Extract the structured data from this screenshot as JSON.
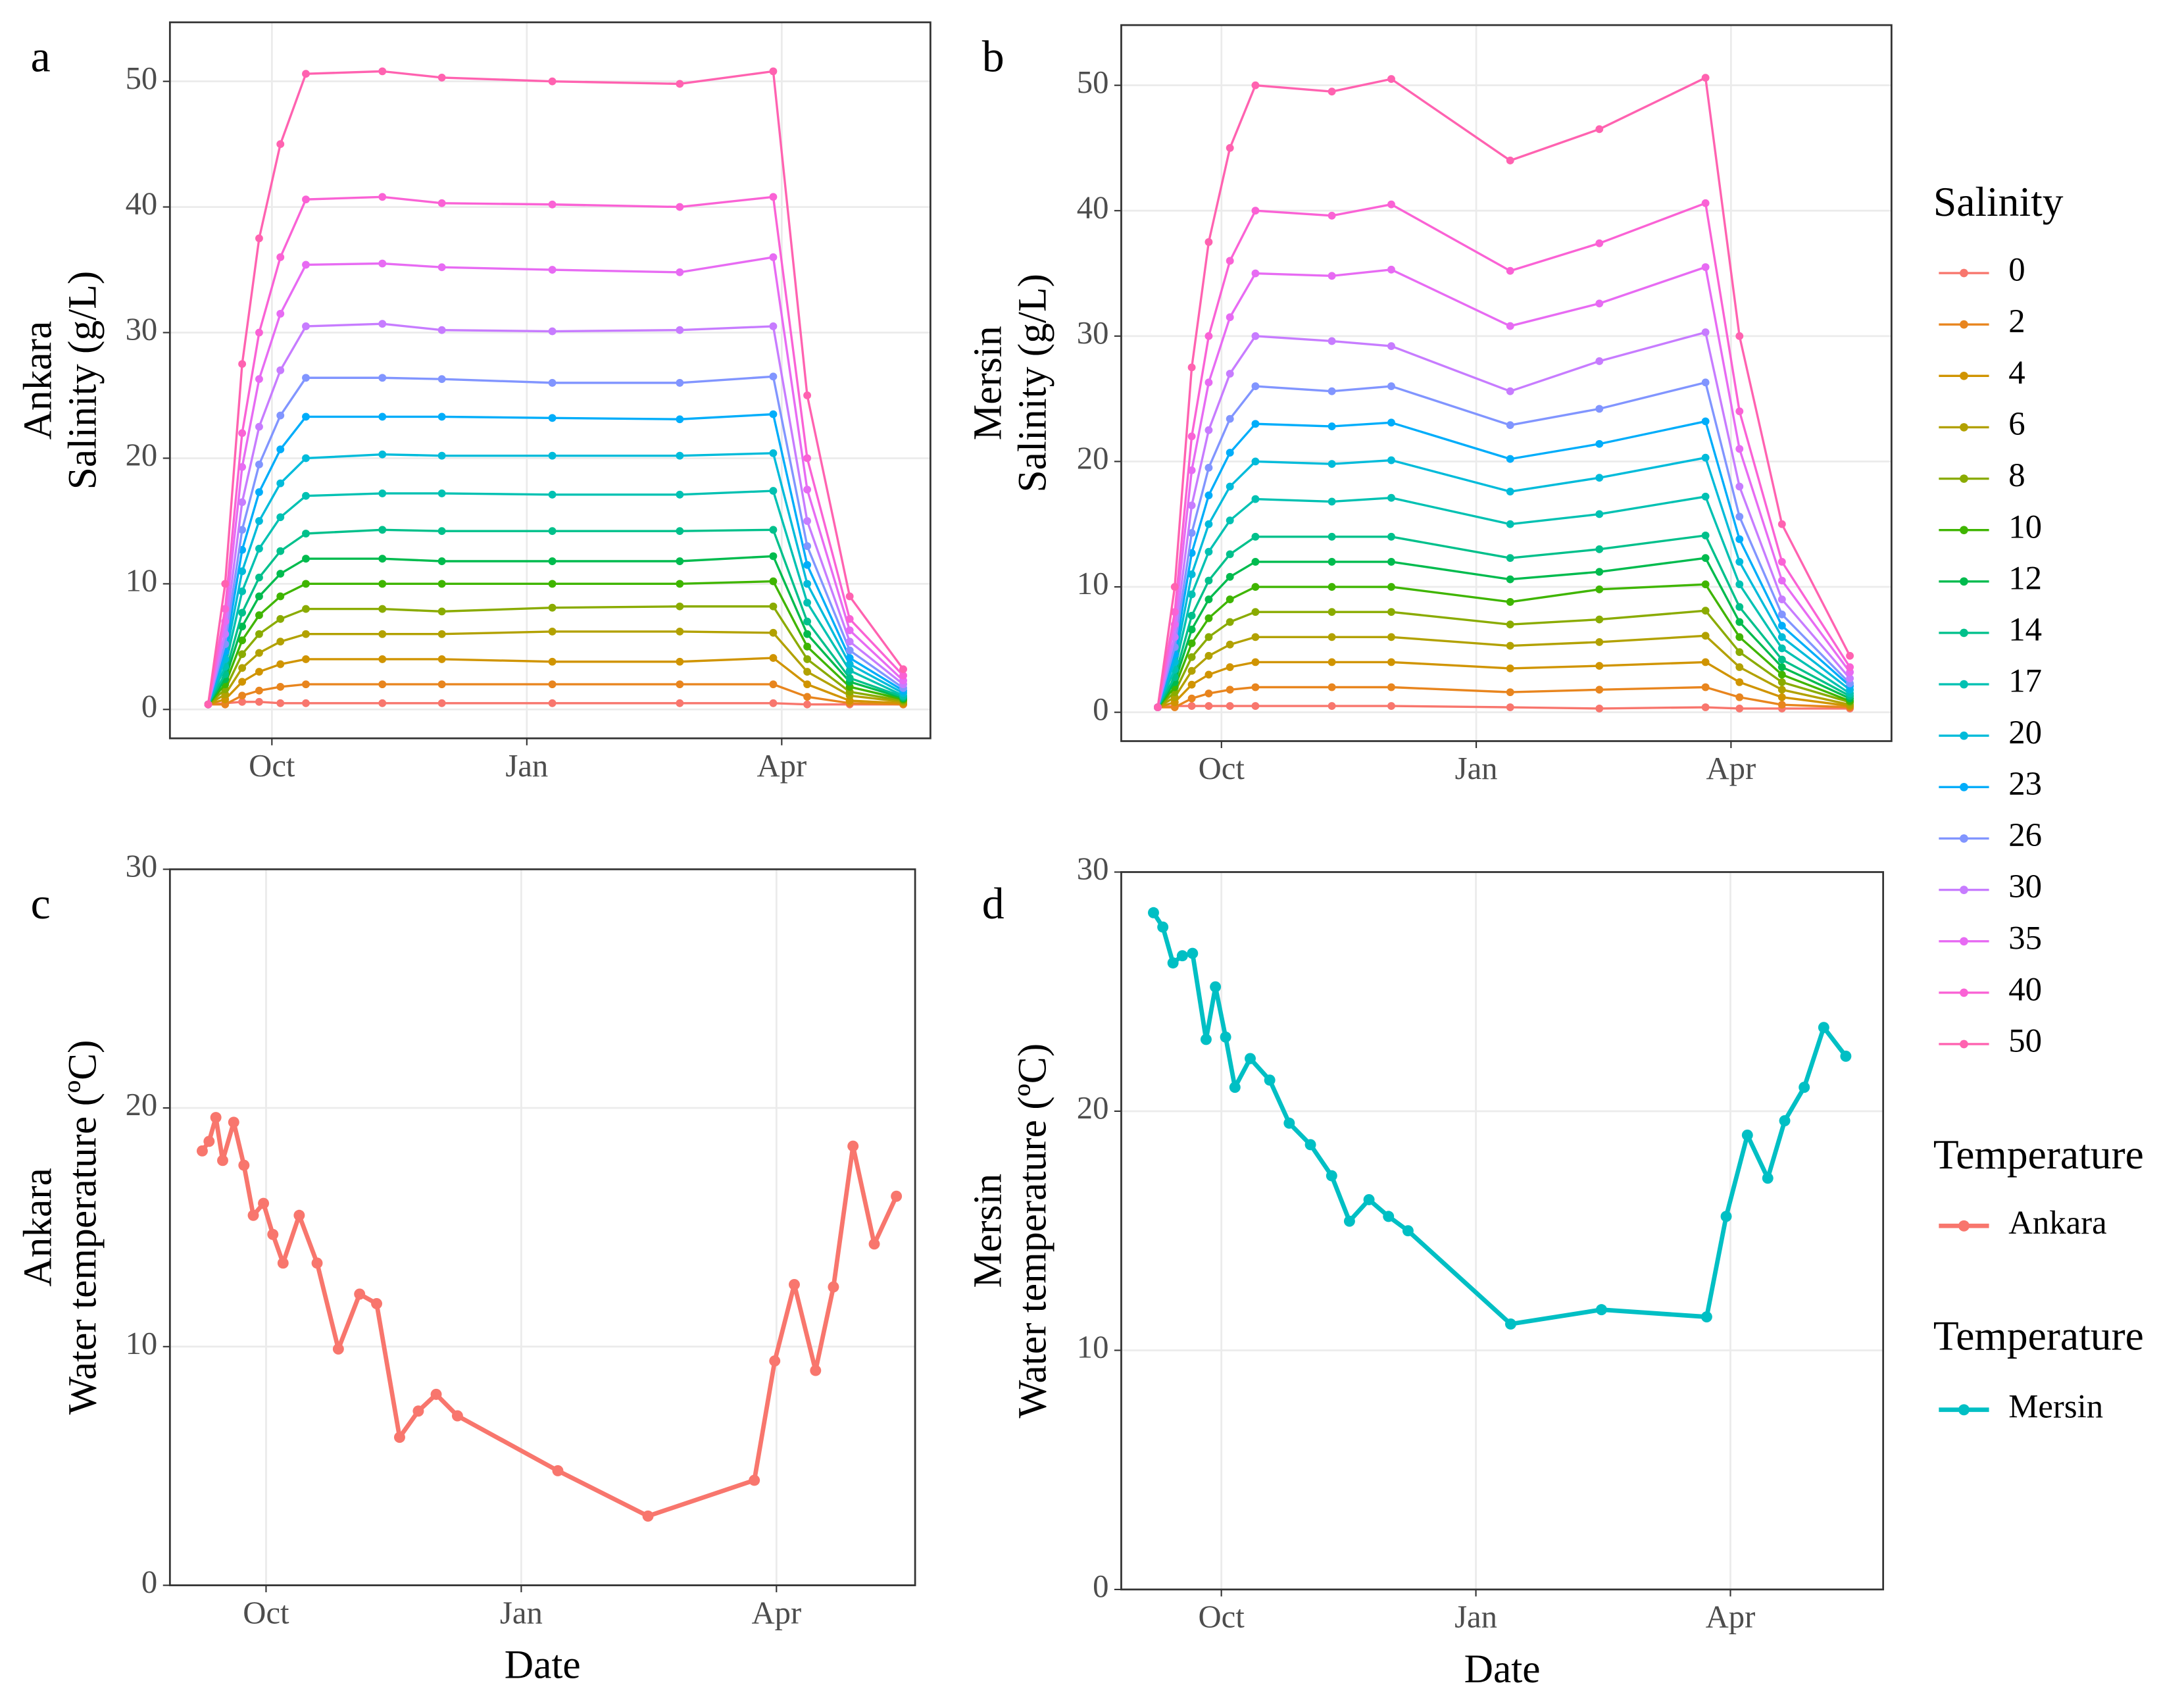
{
  "chart_data": [
    {
      "type": "line",
      "panel_label": "a",
      "ylabel": [
        "Ankara",
        "Salinity (g/L)"
      ],
      "legend_title": "Salinity",
      "xlim": [
        8.8,
        17.75
      ],
      "ylim": [
        -2.3,
        54.7
      ],
      "xticks": [
        {
          "value": 10,
          "label": "Oct"
        },
        {
          "value": 13,
          "label": "Jan"
        },
        {
          "value": 16,
          "label": "Apr"
        }
      ],
      "yticks": [
        0,
        10,
        20,
        30,
        40,
        50
      ],
      "grid": true,
      "x": [
        9.25,
        9.45,
        9.65,
        9.85,
        10.1,
        10.4,
        11.3,
        12.0,
        13.3,
        14.8,
        15.9,
        16.3,
        16.8,
        17.43
      ],
      "series": [
        {
          "name": "0",
          "color": "#F8766D",
          "values": [
            0.4,
            0.5,
            0.6,
            0.6,
            0.5,
            0.5,
            0.5,
            0.5,
            0.5,
            0.5,
            0.5,
            0.4,
            0.4,
            0.4
          ]
        },
        {
          "name": "2",
          "color": "#E8851E",
          "values": [
            0.4,
            0.4,
            1.1,
            1.5,
            1.8,
            2,
            2,
            2,
            2,
            2,
            2,
            1,
            0.5,
            0.4
          ]
        },
        {
          "name": "4",
          "color": "#D09400",
          "values": [
            0.4,
            0.8,
            2.2,
            3,
            3.6,
            4,
            4,
            4,
            3.8,
            3.8,
            4.1,
            2,
            0.7,
            0.5
          ]
        },
        {
          "name": "6",
          "color": "#B2A100",
          "values": [
            0.4,
            1.2,
            3.3,
            4.5,
            5.4,
            6,
            6,
            6,
            6.2,
            6.2,
            6.1,
            3,
            1.1,
            0.6
          ]
        },
        {
          "name": "8",
          "color": "#8AAB00",
          "values": [
            0.4,
            1.6,
            4.4,
            6,
            7.2,
            8,
            8,
            7.8,
            8.1,
            8.2,
            8.2,
            4,
            1.4,
            0.7
          ]
        },
        {
          "name": "10",
          "color": "#3FB500",
          "values": [
            0.4,
            2,
            5.5,
            7.5,
            9,
            10,
            10,
            10,
            10,
            10,
            10.2,
            5,
            1.8,
            0.8
          ]
        },
        {
          "name": "12",
          "color": "#00BB4E",
          "values": [
            0.4,
            2.4,
            6.6,
            9,
            10.8,
            12,
            12,
            11.8,
            11.8,
            11.8,
            12.2,
            6,
            2.2,
            0.9
          ]
        },
        {
          "name": "14",
          "color": "#00C08B",
          "values": [
            0.4,
            2.8,
            7.7,
            10.5,
            12.6,
            14,
            14.3,
            14.2,
            14.2,
            14.2,
            14.3,
            7,
            2.5,
            1
          ]
        },
        {
          "name": "17",
          "color": "#00C1B2",
          "values": [
            0.4,
            3.4,
            9.4,
            12.8,
            15.3,
            17,
            17.2,
            17.2,
            17.1,
            17.1,
            17.4,
            8.5,
            3.1,
            1.1
          ]
        },
        {
          "name": "20",
          "color": "#00BBDA",
          "values": [
            0.4,
            4,
            11,
            15,
            18,
            20,
            20.3,
            20.2,
            20.2,
            20.2,
            20.4,
            10,
            3.6,
            1.3
          ]
        },
        {
          "name": "23",
          "color": "#00ADFA",
          "values": [
            0.4,
            4.6,
            12.7,
            17.3,
            20.7,
            23.3,
            23.3,
            23.3,
            23.2,
            23.1,
            23.5,
            11.5,
            4.1,
            1.5
          ]
        },
        {
          "name": "26",
          "color": "#8195FF",
          "values": [
            0.4,
            5.2,
            14.3,
            19.5,
            23.4,
            26.4,
            26.4,
            26.3,
            26,
            26,
            26.5,
            13,
            4.7,
            1.7
          ]
        },
        {
          "name": "30",
          "color": "#C77CFF",
          "values": [
            0.4,
            6,
            16.5,
            22.5,
            27,
            30.5,
            30.7,
            30.2,
            30.1,
            30.2,
            30.5,
            15,
            5.4,
            2
          ]
        },
        {
          "name": "35",
          "color": "#E76BF3",
          "values": [
            0.4,
            7,
            19.3,
            26.3,
            31.5,
            35.4,
            35.5,
            35.2,
            35,
            34.8,
            36,
            17.5,
            6.3,
            2.3
          ]
        },
        {
          "name": "40",
          "color": "#FA62D5",
          "values": [
            0.4,
            8,
            22,
            30,
            36,
            40.6,
            40.8,
            40.3,
            40.2,
            40,
            40.8,
            20,
            7.2,
            2.7
          ]
        },
        {
          "name": "50",
          "color": "#FF62B0",
          "values": [
            0.4,
            10,
            27.5,
            37.5,
            45,
            50.6,
            50.8,
            50.3,
            50,
            49.8,
            50.8,
            25,
            9,
            3.2
          ]
        }
      ]
    },
    {
      "type": "line",
      "panel_label": "b",
      "ylabel": [
        "Mersin",
        "Salinity (g/L)"
      ],
      "xlim": [
        8.82,
        17.89
      ],
      "ylim": [
        -2.3,
        54.8
      ],
      "xticks": [
        {
          "value": 10,
          "label": "Oct"
        },
        {
          "value": 13,
          "label": "Jan"
        },
        {
          "value": 16,
          "label": "Apr"
        }
      ],
      "yticks": [
        0,
        10,
        20,
        30,
        40,
        50
      ],
      "grid": true,
      "x": [
        9.25,
        9.45,
        9.65,
        9.85,
        10.1,
        10.4,
        11.3,
        12.0,
        13.4,
        14.45,
        15.7,
        16.1,
        16.6,
        17.4
      ],
      "series": [
        {
          "color": "#F8766D",
          "values": [
            0.4,
            0.5,
            0.5,
            0.5,
            0.5,
            0.5,
            0.5,
            0.5,
            0.4,
            0.3,
            0.4,
            0.3,
            0.3,
            0.3
          ]
        },
        {
          "color": "#E8851E",
          "values": [
            0.4,
            0.4,
            1.1,
            1.5,
            1.8,
            2,
            2,
            2,
            1.6,
            1.8,
            2,
            1.2,
            0.6,
            0.4
          ]
        },
        {
          "color": "#D09400",
          "values": [
            0.4,
            0.8,
            2.2,
            3,
            3.6,
            4,
            4,
            4,
            3.5,
            3.7,
            4,
            2.4,
            1.2,
            0.5
          ]
        },
        {
          "color": "#B2A100",
          "values": [
            0.4,
            1.2,
            3.3,
            4.5,
            5.4,
            6,
            6,
            6,
            5.3,
            5.6,
            6.1,
            3.6,
            1.8,
            0.6
          ]
        },
        {
          "color": "#8AAB00",
          "values": [
            0.4,
            1.6,
            4.4,
            6,
            7.2,
            8,
            8,
            8,
            7,
            7.4,
            8.1,
            4.8,
            2.4,
            0.8
          ]
        },
        {
          "color": "#3FB500",
          "values": [
            0.4,
            2,
            5.5,
            7.5,
            9,
            10,
            10,
            10,
            8.8,
            9.8,
            10.2,
            6,
            3,
            0.9
          ]
        },
        {
          "color": "#00BB4E",
          "values": [
            0.4,
            2.4,
            6.6,
            9,
            10.8,
            12,
            12,
            12,
            10.6,
            11.2,
            12.3,
            7.2,
            3.6,
            1.1
          ]
        },
        {
          "color": "#00C08B",
          "values": [
            0.4,
            2.8,
            7.7,
            10.5,
            12.6,
            14,
            14,
            14,
            12.3,
            13,
            14.1,
            8.4,
            4.2,
            1.3
          ]
        },
        {
          "color": "#00C1B2",
          "values": [
            0.4,
            3.4,
            9.4,
            12.8,
            15.3,
            17,
            16.8,
            17.1,
            15,
            15.8,
            17.2,
            10.2,
            5.1,
            1.5
          ]
        },
        {
          "color": "#00BBDA",
          "values": [
            0.4,
            4,
            11,
            15,
            18,
            20,
            19.8,
            20.1,
            17.6,
            18.7,
            20.3,
            12,
            6,
            1.8
          ]
        },
        {
          "color": "#00ADFA",
          "values": [
            0.4,
            4.6,
            12.7,
            17.3,
            20.7,
            23,
            22.8,
            23.1,
            20.2,
            21.4,
            23.2,
            13.8,
            6.9,
            2.1
          ]
        },
        {
          "color": "#8195FF",
          "values": [
            0.4,
            5.2,
            14.3,
            19.5,
            23.4,
            26,
            25.6,
            26,
            22.9,
            24.2,
            26.3,
            15.6,
            7.8,
            2.3
          ]
        },
        {
          "color": "#C77CFF",
          "values": [
            0.4,
            6,
            16.5,
            22.5,
            27,
            30,
            29.6,
            29.2,
            25.6,
            28,
            30.3,
            18,
            9,
            2.7
          ]
        },
        {
          "color": "#E76BF3",
          "values": [
            0.4,
            7,
            19.3,
            26.3,
            31.5,
            35,
            34.8,
            35.3,
            30.8,
            32.6,
            35.5,
            21,
            10.5,
            3.2
          ]
        },
        {
          "color": "#FA62D5",
          "values": [
            0.4,
            8,
            22,
            30,
            36,
            40,
            39.6,
            40.5,
            35.2,
            37.4,
            40.6,
            24,
            12,
            3.6
          ]
        },
        {
          "color": "#FF62B0",
          "values": [
            0.4,
            10,
            27.5,
            37.5,
            45,
            50,
            49.5,
            50.5,
            44,
            46.5,
            50.6,
            30,
            15,
            4.5
          ]
        }
      ]
    },
    {
      "type": "line",
      "panel_label": "c",
      "ylabel": [
        "Ankara",
        "Water temperature (ºC)"
      ],
      "xlabel": "Date",
      "legend_title": "Temperature",
      "xlim": [
        8.87,
        17.63
      ],
      "ylim": [
        0,
        30
      ],
      "xticks": [
        {
          "value": 10,
          "label": "Oct"
        },
        {
          "value": 13,
          "label": "Jan"
        },
        {
          "value": 16,
          "label": "Apr"
        }
      ],
      "yticks": [
        0,
        10,
        20,
        30
      ],
      "grid": true,
      "x": [
        9.25,
        9.33,
        9.41,
        9.49,
        9.62,
        9.74,
        9.85,
        9.97,
        10.08,
        10.2,
        10.39,
        10.6,
        10.85,
        11.1,
        11.3,
        11.57,
        11.79,
        12.0,
        12.25,
        13.43,
        14.49,
        15.74,
        15.98,
        16.21,
        16.46,
        16.67,
        16.9,
        17.15,
        17.41
      ],
      "series": [
        {
          "name": "Ankara",
          "color": "#F8766D",
          "values": [
            18.2,
            18.6,
            19.6,
            17.8,
            19.4,
            17.6,
            15.5,
            16,
            14.7,
            13.5,
            15.5,
            13.5,
            9.9,
            12.2,
            11.8,
            6.2,
            7.3,
            8,
            7.1,
            4.8,
            2.9,
            4.4,
            9.4,
            12.6,
            9,
            12.5,
            18.4,
            14.3,
            16.3
          ]
        }
      ]
    },
    {
      "type": "line",
      "panel_label": "d",
      "ylabel": [
        "Mersin",
        "Water temperature (ºC)"
      ],
      "xlabel": "Date",
      "legend_title": "Temperature",
      "xlim": [
        8.82,
        17.8
      ],
      "ylim": [
        0,
        30
      ],
      "xticks": [
        {
          "value": 10,
          "label": "Oct"
        },
        {
          "value": 13,
          "label": "Jan"
        },
        {
          "value": 16,
          "label": "Apr"
        }
      ],
      "yticks": [
        0,
        10,
        20,
        30
      ],
      "grid": true,
      "x": [
        9.2,
        9.31,
        9.43,
        9.54,
        9.66,
        9.82,
        9.93,
        10.05,
        10.16,
        10.34,
        10.57,
        10.8,
        11.05,
        11.3,
        11.51,
        11.74,
        11.97,
        12.2,
        13.41,
        14.48,
        15.72,
        15.95,
        16.2,
        16.44,
        16.64,
        16.87,
        17.1,
        17.36
      ],
      "series": [
        {
          "name": "Mersin",
          "color": "#00BFC4",
          "values": [
            28.3,
            27.7,
            26.2,
            26.5,
            26.6,
            23,
            25.2,
            23.1,
            21,
            22.2,
            21.3,
            19.5,
            18.6,
            17.3,
            15.4,
            16.3,
            15.6,
            15,
            11.1,
            11.7,
            11.4,
            15.6,
            19,
            17.2,
            19.6,
            21,
            23.5,
            22.3
          ]
        }
      ]
    }
  ]
}
